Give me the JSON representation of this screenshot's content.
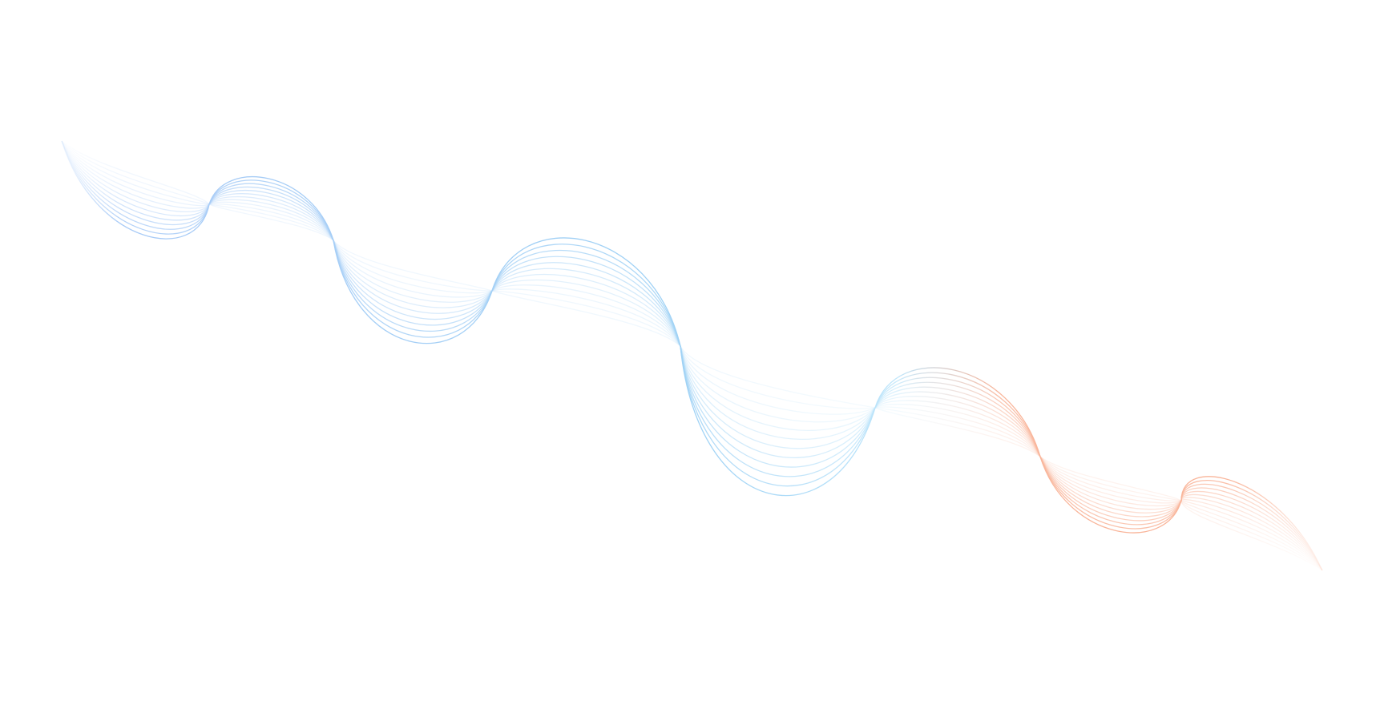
{
  "background": "#ffffff",
  "wave": {
    "icon": "decorative-line-wave",
    "line_count": 12,
    "colors": {
      "start": "#a9cbf7",
      "middle": "#9fd2f5",
      "cyan": "#bfe6fb",
      "end": "#f9b59a"
    }
  }
}
